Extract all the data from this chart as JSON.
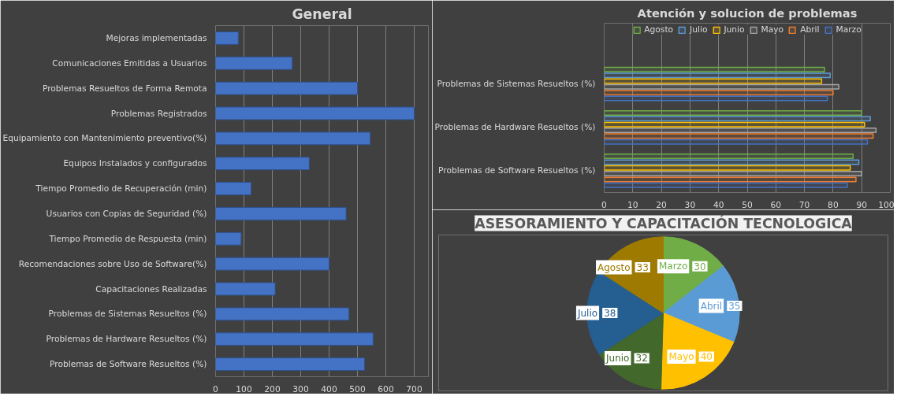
{
  "chart_data": [
    {
      "type": "bar",
      "orientation": "horizontal",
      "title": "General",
      "categories": [
        "Mejoras implementadas",
        "Comunicaciones Emitidas a Usuarios",
        "Problemas Resueltos de Forma Remota",
        "Problemas Registrados",
        "Equipamiento con Mantenimiento preventivo(%)",
        "Equipos Instalados y configurados",
        "Tiempo Promedio de Recuperación (min)",
        "Usuarios con Copias de Seguridad (%)",
        "Tiempo Promedio de Respuesta (min)",
        "Recomendaciones sobre Uso de Software(%)",
        "Capacitaciones Realizadas",
        "Problemas de Sistemas Resueltos (%)",
        "Problemas de Hardware Resueltos (%)",
        "Problemas de Software Resueltos (%)"
      ],
      "values": [
        80,
        270,
        500,
        700,
        545,
        330,
        125,
        460,
        90,
        400,
        210,
        470,
        555,
        525
      ],
      "color": "#4472c4",
      "xlim": [
        0,
        750
      ],
      "xticks": [
        0,
        100,
        200,
        300,
        400,
        500,
        600,
        700
      ],
      "grid": "x"
    },
    {
      "type": "bar",
      "orientation": "horizontal",
      "title": "Atención y solucion de problemas",
      "categories": [
        "Problemas de Sistemas Resueltos (%)",
        "Problemas de Hardware Resueltos (%)",
        "Problemas de Software Resueltos (%)"
      ],
      "series": [
        {
          "name": "Agosto",
          "color": "#70ad47",
          "values": [
            77,
            90,
            87
          ]
        },
        {
          "name": "Julio",
          "color": "#5b9bd5",
          "values": [
            79,
            93,
            89
          ]
        },
        {
          "name": "Junio",
          "color": "#ffc000",
          "values": [
            76,
            91,
            86
          ]
        },
        {
          "name": "Mayo",
          "color": "#a5a5a5",
          "values": [
            82,
            95,
            90
          ]
        },
        {
          "name": "Abril",
          "color": "#ed7d31",
          "values": [
            80,
            94,
            88
          ]
        },
        {
          "name": "Marzo",
          "color": "#4472c4",
          "values": [
            78,
            92,
            85
          ]
        }
      ],
      "xlim": [
        0,
        100
      ],
      "xticks": [
        0,
        10,
        20,
        30,
        40,
        50,
        60,
        70,
        80,
        90,
        100
      ],
      "grid": "x",
      "legend": "top"
    },
    {
      "type": "pie",
      "title": "ASESORAMIENTO Y CAPACITACIÓN TECNOLOGICA",
      "categories": [
        "Marzo",
        "Abril",
        "Mayo",
        "Junio",
        "Julio",
        "Agosto"
      ],
      "values": [
        30,
        35,
        40,
        32,
        38,
        33
      ],
      "colors": [
        "#70ad47",
        "#5b9bd5",
        "#ffc000",
        "#43682b",
        "#255e91",
        "#9e7b00"
      ],
      "data_labels": true
    }
  ]
}
